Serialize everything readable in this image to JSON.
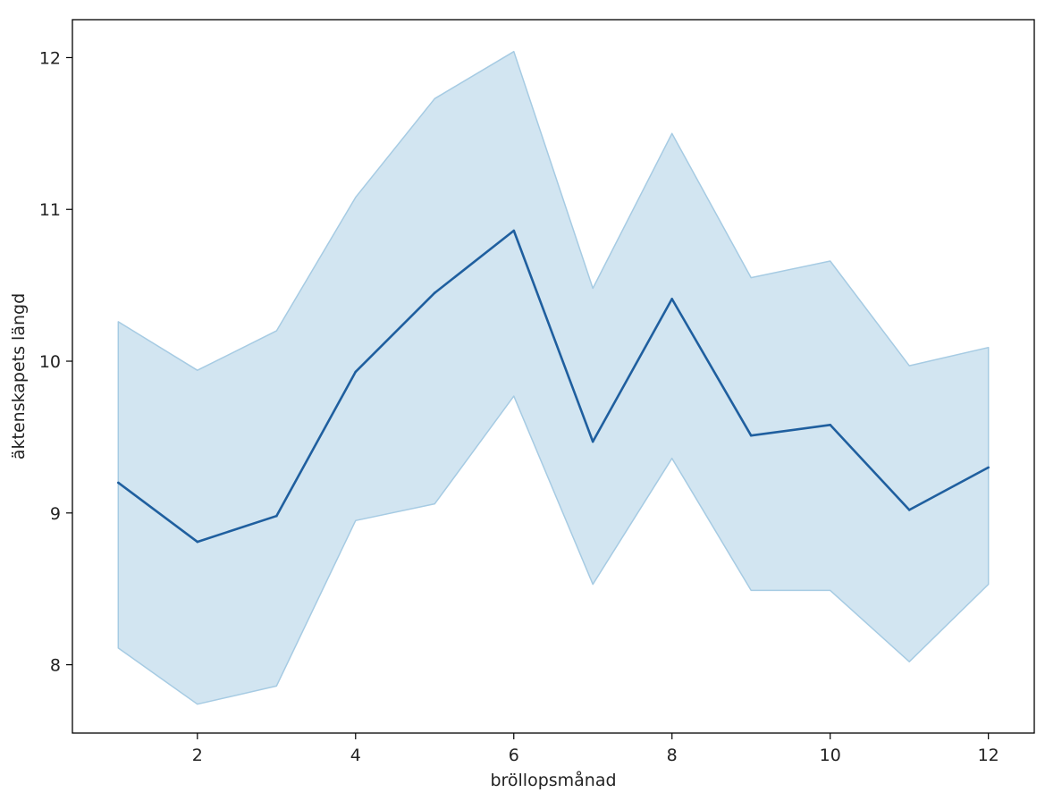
{
  "chart_data": {
    "type": "line",
    "title": "",
    "xlabel": "bröllopsmånad",
    "ylabel": "äktenskapets längd",
    "xlim": [
      0.42,
      12.58
    ],
    "ylim": [
      7.55,
      12.25
    ],
    "grid": false,
    "legend": "none",
    "x_ticks": [
      2,
      4,
      6,
      8,
      10,
      12
    ],
    "x_tick_labels": [
      "2",
      "4",
      "6",
      "8",
      "10",
      "12"
    ],
    "y_ticks": [
      8,
      9,
      10,
      11,
      12
    ],
    "y_tick_labels": [
      "8",
      "9",
      "10",
      "11",
      "12"
    ],
    "series": [
      {
        "x": [
          1,
          2,
          3,
          4,
          5,
          6,
          7,
          8,
          9,
          10,
          11,
          12
        ],
        "values": [
          9.2,
          8.81,
          8.98,
          9.93,
          10.45,
          10.86,
          9.47,
          10.41,
          9.51,
          9.58,
          9.02,
          9.3
        ],
        "ci_lower": [
          8.11,
          7.74,
          7.86,
          8.95,
          9.06,
          9.77,
          8.53,
          9.36,
          8.49,
          8.49,
          8.02,
          8.53
        ],
        "ci_upper": [
          10.26,
          9.94,
          10.2,
          11.08,
          11.73,
          12.04,
          10.48,
          11.5,
          10.55,
          10.66,
          9.97,
          10.09
        ],
        "color": "#1f5f9f",
        "band_color": "#a6cbe3"
      }
    ]
  }
}
